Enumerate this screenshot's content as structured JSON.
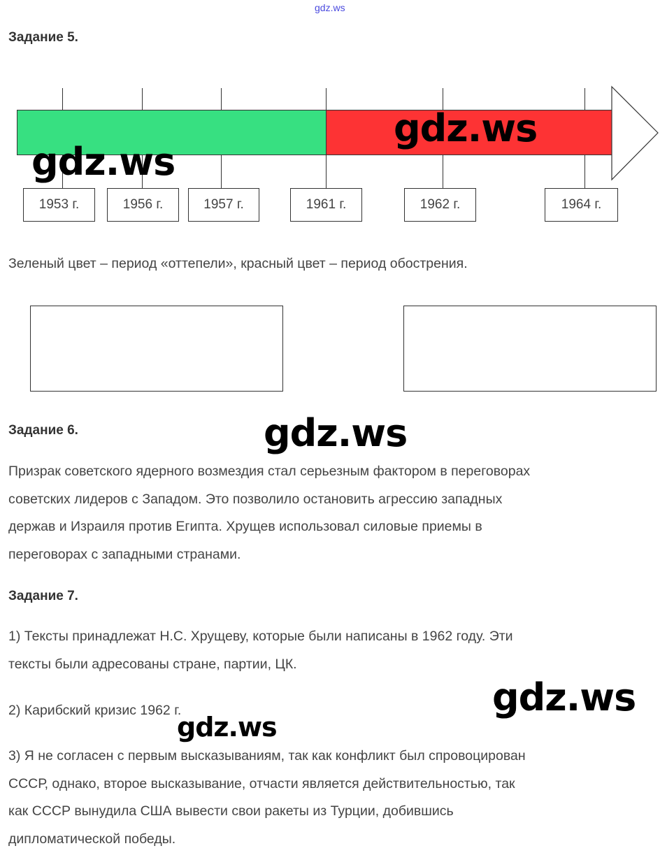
{
  "site_header": "gdz.ws",
  "task5": {
    "heading": "Задание 5.",
    "colors": {
      "thaw": "#37e081",
      "escalation": "#fd3334"
    },
    "years": [
      "1953 г.",
      "1956 г.",
      "1957 г.",
      "1961 г.",
      "1962 г.",
      "1964 г."
    ],
    "legend": "Зеленый цвет – период «оттепели», красный цвет – период обострения."
  },
  "task6": {
    "heading": "Задание 6.",
    "text": [
      "Призрак советского ядерного возмездия стал серьезным фактором в переговорах",
      "советских лидеров с Западом. Это позволило остановить агрессию западных",
      "держав и Израиля против Египта. Хрущев использовал силовые приемы в",
      "переговорах с западными странами."
    ]
  },
  "task7": {
    "heading": "Задание 7.",
    "a1": [
      "1) Тексты принадлежат Н.С. Хрущеву, которые были написаны в 1962 году. Эти",
      "тексты были адресованы стране, партии, ЦК."
    ],
    "a2": "2) Карибский кризис 1962 г.",
    "a3": [
      "3) Я не согласен с первым высказываниям, так как конфликт был спровоцирован",
      "СССР, однако, второе высказывание, отчасти является действительностью, так",
      "как СССР вынудила США вывести свои ракеты из Турции, добившись",
      "дипломатической победы."
    ]
  },
  "watermark": "gdz.ws"
}
